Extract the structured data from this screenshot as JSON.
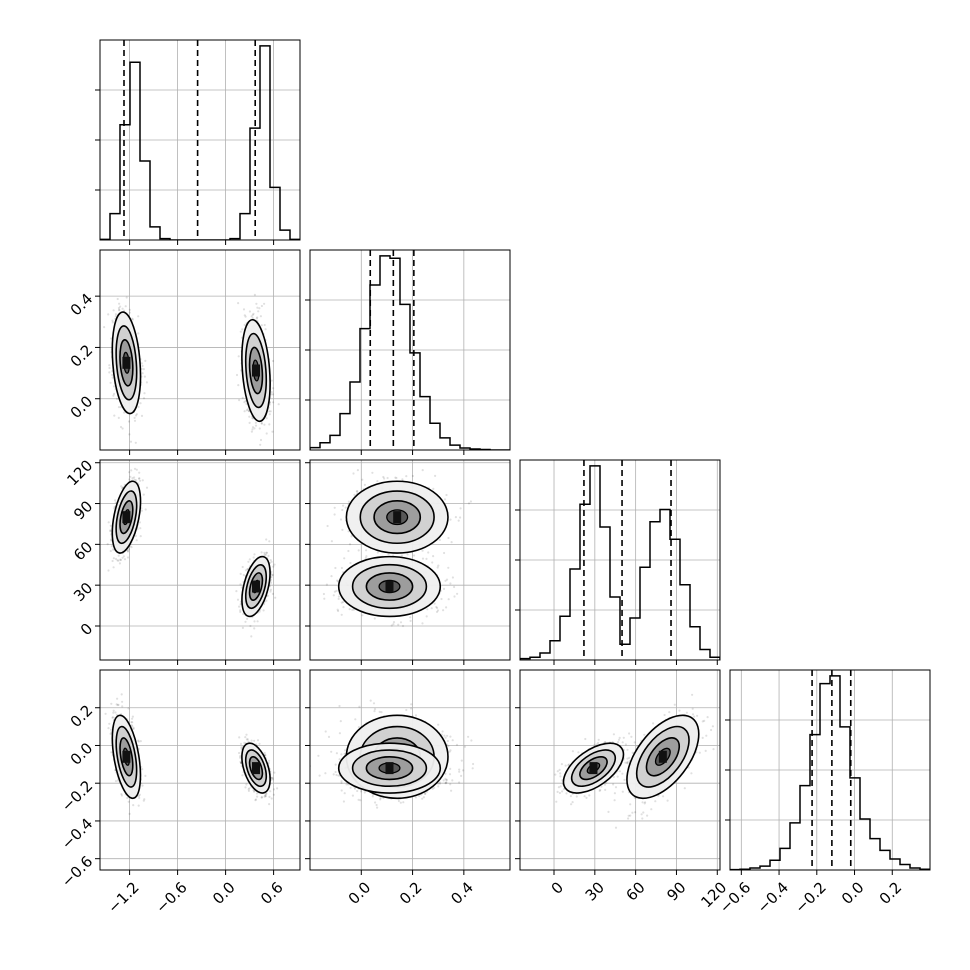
{
  "chart_data": {
    "type": "corner",
    "grid": true,
    "params": [
      {
        "xlim": [
          -1.57,
          0.93
        ],
        "xticks": [
          -1.2,
          -0.6,
          0.0,
          0.6
        ],
        "xticklabels": [
          "−1.2",
          "−0.6",
          "0.0",
          "0.6"
        ],
        "quantiles": [
          -1.27,
          -0.35,
          0.37
        ],
        "hist_edges": [
          -1.57,
          -1.445,
          -1.32,
          -1.195,
          -1.07,
          -0.945,
          -0.82,
          -0.695,
          -0.57,
          -0.445,
          -0.32,
          -0.195,
          -0.07,
          0.055,
          0.18,
          0.305,
          0.43,
          0.555,
          0.68,
          0.805,
          0.93
        ],
        "hist_counts": [
          1,
          40,
          175,
          270,
          120,
          20,
          2,
          0,
          0,
          0,
          0,
          0,
          0,
          2,
          40,
          170,
          295,
          80,
          15,
          1
        ]
      },
      {
        "xlim": [
          -0.2,
          0.58
        ],
        "xticks": [
          0.0,
          0.2,
          0.4
        ],
        "xticklabels": [
          "0.0",
          "0.2",
          "0.4"
        ],
        "yticks": [
          0.0,
          0.2,
          0.4
        ],
        "yticklabels": [
          "0.0",
          "0.2",
          "0.4"
        ],
        "quantiles": [
          0.035,
          0.125,
          0.205
        ],
        "hist_edges": [
          -0.2,
          -0.161,
          -0.122,
          -0.083,
          -0.044,
          -0.005,
          0.034,
          0.073,
          0.112,
          0.151,
          0.19,
          0.229,
          0.268,
          0.307,
          0.346,
          0.385,
          0.424,
          0.463,
          0.502,
          0.541,
          0.58
        ],
        "hist_counts": [
          5,
          15,
          30,
          75,
          140,
          250,
          340,
          400,
          395,
          300,
          200,
          110,
          55,
          25,
          10,
          4,
          2,
          1,
          0,
          0
        ]
      },
      {
        "xlim": [
          -25,
          122
        ],
        "xticks": [
          0,
          30,
          60,
          90,
          120
        ],
        "xticklabels": [
          "0",
          "30",
          "60",
          "90",
          "120"
        ],
        "yticks": [
          0,
          30,
          60,
          90,
          120
        ],
        "yticklabels": [
          "0",
          "30",
          "60",
          "90",
          "120"
        ],
        "quantiles": [
          22,
          50,
          86
        ],
        "hist_edges": [
          -25,
          -17.65,
          -10.3,
          -2.95,
          4.4,
          11.75,
          19.1,
          26.45,
          33.8,
          41.15,
          48.5,
          55.85,
          63.2,
          70.55,
          77.9,
          85.25,
          92.6,
          99.95,
          107.3,
          114.65,
          122
        ],
        "hist_counts": [
          4,
          8,
          20,
          55,
          125,
          260,
          445,
          555,
          380,
          180,
          45,
          120,
          265,
          395,
          430,
          345,
          215,
          95,
          30,
          8
        ]
      },
      {
        "xlim": [
          -0.66,
          0.4
        ],
        "xticks": [
          -0.6,
          -0.4,
          -0.2,
          0.0,
          0.2
        ],
        "xticklabels": [
          "−0.6",
          "−0.4",
          "−0.2",
          "0.0",
          "0.2"
        ],
        "yticks": [
          -0.6,
          -0.4,
          -0.2,
          0.0,
          0.2
        ],
        "yticklabels": [
          "−0.6",
          "−0.4",
          "−0.2",
          "0.0",
          "0.2"
        ],
        "quantiles": [
          -0.225,
          -0.12,
          -0.02
        ],
        "hist_edges": [
          -0.66,
          -0.607,
          -0.554,
          -0.501,
          -0.448,
          -0.395,
          -0.342,
          -0.289,
          -0.236,
          -0.183,
          -0.13,
          -0.077,
          -0.024,
          0.029,
          0.082,
          0.135,
          0.188,
          0.241,
          0.294,
          0.347,
          0.4
        ],
        "hist_counts": [
          1,
          2,
          5,
          10,
          25,
          55,
          120,
          215,
          345,
          475,
          495,
          365,
          235,
          130,
          80,
          50,
          28,
          14,
          5,
          2
        ]
      }
    ],
    "modes": [
      {
        "centers": [
          -1.24,
          0.14,
          80,
          -0.06
        ],
        "sd": [
          0.08,
          0.09,
          12,
          0.1
        ]
      },
      {
        "centers": [
          0.38,
          0.11,
          29,
          -0.12
        ],
        "sd": [
          0.08,
          0.09,
          10,
          0.06
        ]
      }
    ],
    "pair_correlation": {
      "1-0": -0.25,
      "2-0": 0.45,
      "2-1": 0.0,
      "3-0": -0.45,
      "3-1": 0.0,
      "3-2": 0.55
    }
  }
}
